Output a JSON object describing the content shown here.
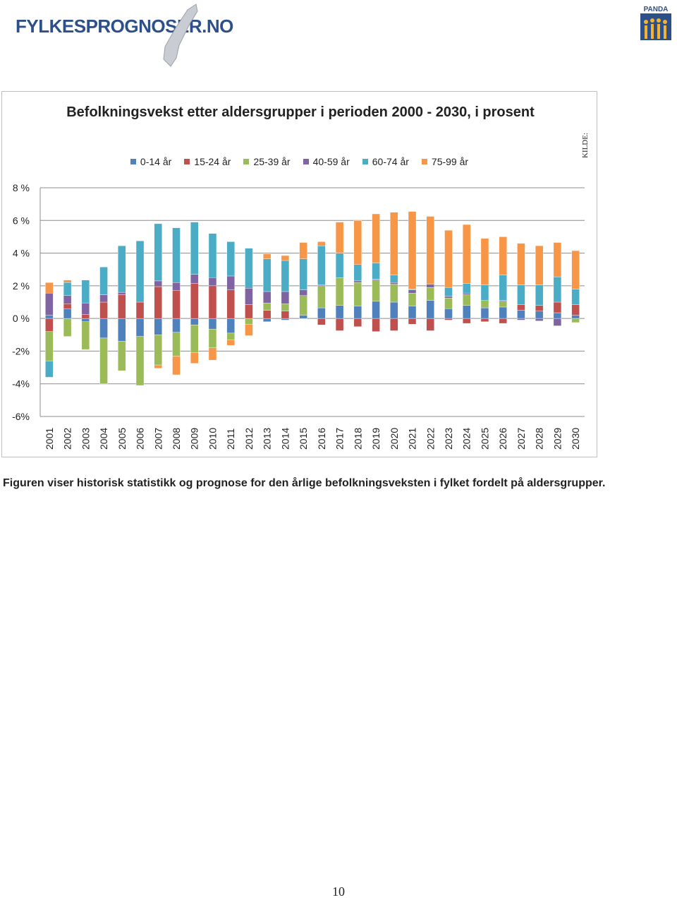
{
  "header": {
    "logo": "FYLKESPROGNOSER.NO",
    "badge": "PANDA"
  },
  "chart_data": {
    "type": "stacked-bar",
    "title": "Befolkningsvekst etter aldersgrupper i perioden 2000 - 2030, i prosent",
    "side_note": "KILDE:",
    "categories": [
      "2001",
      "2002",
      "2003",
      "2004",
      "2005",
      "2006",
      "2007",
      "2008",
      "2009",
      "2010",
      "2011",
      "2012",
      "2013",
      "2014",
      "2015",
      "2016",
      "2017",
      "2018",
      "2019",
      "2020",
      "2021",
      "2022",
      "2023",
      "2024",
      "2025",
      "2026",
      "2027",
      "2028",
      "2029",
      "2030"
    ],
    "series": [
      {
        "name": "0-14 år",
        "color": "#4f81bd",
        "values": [
          0.2,
          0.6,
          -0.2,
          -1.2,
          -1.4,
          -1.1,
          -1.0,
          -0.85,
          -0.4,
          -0.65,
          -0.9,
          0,
          -0.2,
          -0.1,
          0.2,
          0.65,
          0.8,
          0.75,
          1.05,
          1.0,
          0.75,
          1.1,
          0.6,
          0.8,
          0.65,
          0.7,
          0.5,
          0.45,
          0.35,
          0.2
        ]
      },
      {
        "name": "15-24 år",
        "color": "#c0504d",
        "values": [
          -0.8,
          0.3,
          0.25,
          1.0,
          1.45,
          1.0,
          1.95,
          1.7,
          2.15,
          2.0,
          1.75,
          0.85,
          0.5,
          0.45,
          0,
          -0.4,
          -0.75,
          -0.5,
          -0.8,
          -0.75,
          -0.35,
          -0.75,
          -0.1,
          -0.3,
          -0.2,
          -0.3,
          0.35,
          0.35,
          0.65,
          0.65
        ]
      },
      {
        "name": "25-39 år",
        "color": "#9bbb59",
        "values": [
          -1.8,
          -1.1,
          -1.7,
          -2.8,
          -1.8,
          -3.0,
          -1.85,
          -1.45,
          -1.7,
          -1.15,
          -0.4,
          -0.35,
          0.45,
          0.45,
          1.2,
          1.35,
          1.7,
          1.45,
          1.3,
          1.1,
          0.8,
          0.8,
          0.65,
          0.65,
          0.45,
          0.35,
          0,
          0,
          0,
          -0.25
        ]
      },
      {
        "name": "40-59 år",
        "color": "#8064a2",
        "values": [
          1.35,
          0.5,
          0.7,
          0.45,
          0.15,
          0,
          0.35,
          0.5,
          0.55,
          0.5,
          0.85,
          1.0,
          0.7,
          0.75,
          0.35,
          0.05,
          0,
          0.1,
          0.05,
          0.1,
          0.2,
          0.2,
          0.1,
          0.1,
          0,
          0.05,
          -0.1,
          -0.15,
          -0.45,
          0
        ]
      },
      {
        "name": "60-74 år",
        "color": "#4bacc6",
        "values": [
          -1.0,
          0.8,
          1.4,
          1.7,
          2.85,
          3.75,
          3.5,
          3.35,
          3.2,
          2.7,
          2.1,
          2.45,
          2.0,
          1.9,
          1.9,
          2.4,
          1.5,
          1.0,
          1.0,
          0.45,
          0.05,
          0,
          0.55,
          0.6,
          0.95,
          1.55,
          1.2,
          1.25,
          1.55,
          0.95
        ]
      },
      {
        "name": "75-99 år",
        "color": "#f79646",
        "values": [
          0.65,
          0.15,
          0,
          0,
          0,
          0,
          -0.2,
          -1.15,
          -0.65,
          -0.75,
          -0.35,
          -0.7,
          0.3,
          0.3,
          1.0,
          0.25,
          1.9,
          2.7,
          3.0,
          3.85,
          4.75,
          4.15,
          3.5,
          3.6,
          2.85,
          2.35,
          2.55,
          2.4,
          2.1,
          2.35
        ]
      }
    ],
    "ylim": [
      -6,
      8
    ],
    "yticks": [
      {
        "value": -6,
        "label": "-6%"
      },
      {
        "value": -4,
        "label": "-4%"
      },
      {
        "value": -2,
        "label": "-2%"
      },
      {
        "value": 0,
        "label": "0 %"
      },
      {
        "value": 2,
        "label": "2 %"
      },
      {
        "value": 4,
        "label": "4 %"
      },
      {
        "value": 6,
        "label": "6 %"
      },
      {
        "value": 8,
        "label": "8 %"
      }
    ],
    "grid": true
  },
  "caption": "Figuren viser historisk statistikk og prognose for den årlige befolkningsveksten i fylket fordelt på aldersgrupper.",
  "page_number": "10"
}
